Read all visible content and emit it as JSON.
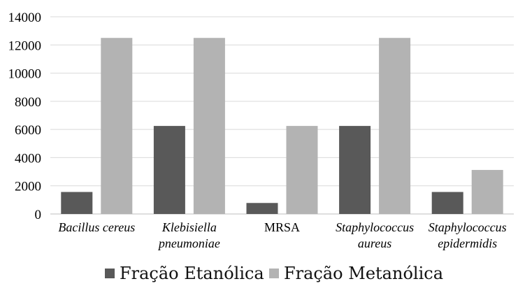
{
  "chart_data": {
    "type": "bar",
    "categories": [
      {
        "lines": [
          "Bacillus cereus"
        ],
        "italic": true
      },
      {
        "lines": [
          "Klebisiella",
          "pneumoniae"
        ],
        "italic": true
      },
      {
        "lines": [
          "MRSA"
        ],
        "italic": false
      },
      {
        "lines": [
          "Staphylococcus",
          "aureus"
        ],
        "italic": true
      },
      {
        "lines": [
          "Staphylococcus",
          "epidermidis"
        ],
        "italic": true
      }
    ],
    "series": [
      {
        "name": "Fração Etanólica",
        "color": "#595959",
        "values": [
          1562,
          6250,
          781,
          6250,
          1562
        ]
      },
      {
        "name": "Fração Metanólica",
        "color": "#b3b3b3",
        "values": [
          12500,
          12500,
          6250,
          12500,
          3125
        ]
      }
    ],
    "ylim": [
      0,
      14000
    ],
    "yticks": [
      "0",
      "2000",
      "4000",
      "6000",
      "8000",
      "10000",
      "12000",
      "14000"
    ],
    "grid": true,
    "legend_position": "bottom",
    "title": "",
    "xlabel": "",
    "ylabel": ""
  }
}
